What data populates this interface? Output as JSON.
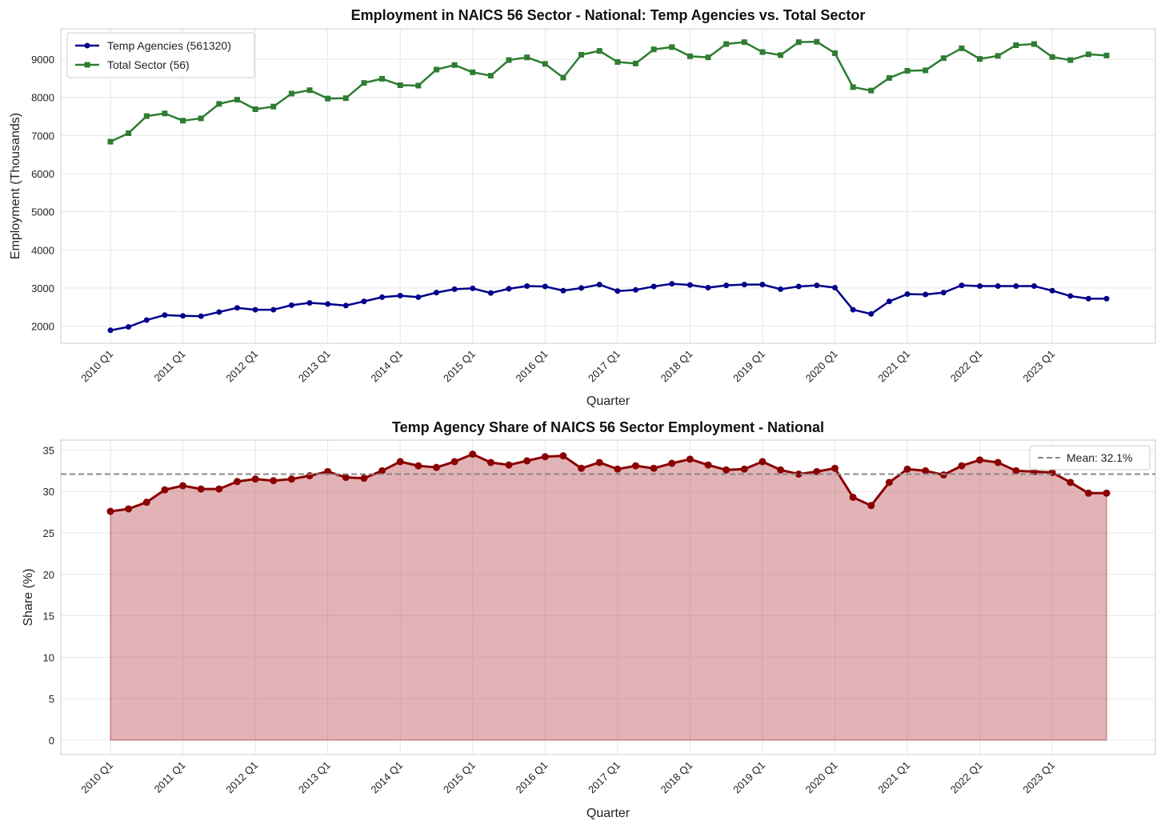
{
  "chart_data": [
    {
      "type": "line",
      "title": "Employment in NAICS 56 Sector - National: Temp Agencies vs. Total Sector",
      "xlabel": "Quarter",
      "ylabel": "Employment (Thousands)",
      "x_tick_labels": [
        "2010 Q1",
        "2011 Q1",
        "2012 Q1",
        "2013 Q1",
        "2014 Q1",
        "2015 Q1",
        "2016 Q1",
        "2017 Q1",
        "2018 Q1",
        "2019 Q1",
        "2020 Q1",
        "2021 Q1",
        "2022 Q1",
        "2023 Q1"
      ],
      "y_ticks": [
        2000,
        3000,
        4000,
        5000,
        6000,
        7000,
        8000,
        9000
      ],
      "ylim": [
        1550,
        9800
      ],
      "grid": true,
      "legend": "top-left",
      "series": [
        {
          "name": "Temp Agencies (561320)",
          "color": "#00008b",
          "marker": "circle",
          "values": [
            1890,
            1980,
            2160,
            2290,
            2270,
            2260,
            2370,
            2480,
            2430,
            2430,
            2550,
            2610,
            2580,
            2540,
            2650,
            2760,
            2800,
            2760,
            2880,
            2970,
            2990,
            2870,
            2980,
            3050,
            3040,
            2930,
            3000,
            3090,
            2920,
            2950,
            3040,
            3110,
            3080,
            3010,
            3070,
            3090,
            3090,
            2970,
            3040,
            3070,
            3010,
            2430,
            2320,
            2650,
            2840,
            2830,
            2880,
            3070,
            3050,
            3050,
            3050,
            3050,
            2930,
            2790,
            2720,
            2720
          ]
        },
        {
          "name": "Total Sector (56)",
          "color": "#2e7d32",
          "marker": "square",
          "values": [
            6840,
            7060,
            7510,
            7580,
            7390,
            7450,
            7830,
            7940,
            7690,
            7760,
            8100,
            8190,
            7970,
            7980,
            8380,
            8490,
            8320,
            8310,
            8730,
            8850,
            8660,
            8570,
            8980,
            9050,
            8880,
            8520,
            9120,
            9220,
            8930,
            8890,
            9260,
            9320,
            9080,
            9050,
            9400,
            9450,
            9190,
            9110,
            9450,
            9460,
            9160,
            8270,
            8180,
            8510,
            8700,
            8710,
            9030,
            9290,
            9010,
            9090,
            9370,
            9400,
            9060,
            8980,
            9130,
            9100
          ]
        }
      ]
    },
    {
      "type": "area",
      "title": "Temp Agency Share of NAICS 56 Sector Employment - National",
      "xlabel": "Quarter",
      "ylabel": "Share (%)",
      "x_tick_labels": [
        "2010 Q1",
        "2011 Q1",
        "2012 Q1",
        "2013 Q1",
        "2014 Q1",
        "2015 Q1",
        "2016 Q1",
        "2017 Q1",
        "2018 Q1",
        "2019 Q1",
        "2020 Q1",
        "2021 Q1",
        "2022 Q1",
        "2023 Q1"
      ],
      "y_ticks": [
        0,
        5,
        10,
        15,
        20,
        25,
        30,
        35
      ],
      "ylim": [
        -1.75,
        36.2
      ],
      "grid": true,
      "legend": "top-right",
      "mean_line": {
        "label": "Mean: 32.1%",
        "value": 32.1,
        "color": "#888888",
        "style": "dashed"
      },
      "series": [
        {
          "name": "",
          "color": "#8b0000",
          "fill_color": "#b94a52",
          "marker": "circle",
          "values": [
            27.6,
            27.9,
            28.7,
            30.2,
            30.7,
            30.3,
            30.3,
            31.2,
            31.5,
            31.3,
            31.5,
            31.9,
            32.4,
            31.7,
            31.6,
            32.5,
            33.6,
            33.1,
            32.9,
            33.6,
            34.5,
            33.5,
            33.2,
            33.7,
            34.2,
            34.3,
            32.8,
            33.5,
            32.7,
            33.1,
            32.8,
            33.4,
            33.9,
            33.2,
            32.6,
            32.7,
            33.6,
            32.6,
            32.1,
            32.4,
            32.8,
            29.3,
            28.3,
            31.1,
            32.7,
            32.5,
            32.0,
            33.1,
            33.8,
            33.5,
            32.5,
            32.4,
            32.3,
            31.1,
            29.8,
            29.8
          ]
        }
      ]
    }
  ]
}
